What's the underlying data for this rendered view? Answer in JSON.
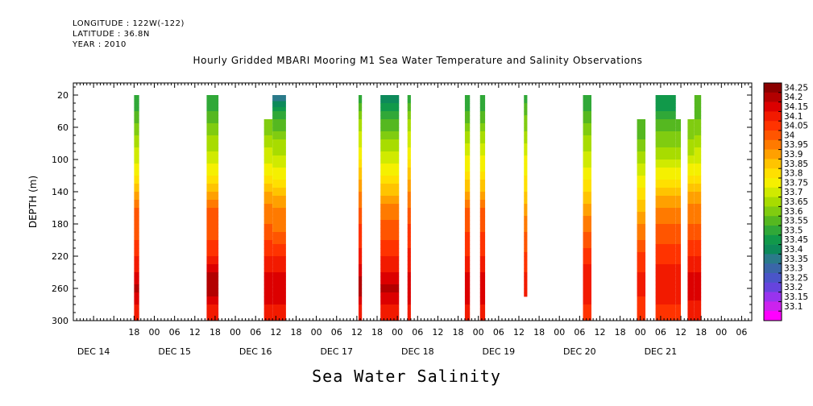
{
  "header": {
    "longitude": "LONGITUDE : 122W(-122)",
    "latitude": "LATITUDE : 36.8N",
    "year": "YEAR : 2010",
    "title": "Hourly Gridded MBARI Mooring M1 Sea Water Temperature and Salinity Observations"
  },
  "chart_data": {
    "type": "heatmap",
    "title": "Hourly Gridded MBARI Mooring M1 Sea Water Temperature and Salinity Observations",
    "xlabel": "Sea Water Salinity",
    "ylabel": "DEPTH (m)",
    "x_unit": "hours since DEC 14 00:00",
    "xlim": [
      -12,
      189
    ],
    "ylim": [
      300,
      5
    ],
    "y_reversed": true,
    "grid": false,
    "y_ticks": [
      20,
      60,
      100,
      140,
      180,
      220,
      260,
      300
    ],
    "x_hour_ticks": [
      {
        "h": 6,
        "label": "18"
      },
      {
        "h": 12,
        "label": "00"
      },
      {
        "h": 18,
        "label": "06"
      },
      {
        "h": 24,
        "label": "12"
      },
      {
        "h": 30,
        "label": "18"
      },
      {
        "h": 36,
        "label": "00"
      },
      {
        "h": 42,
        "label": "06"
      },
      {
        "h": 48,
        "label": "12"
      },
      {
        "h": 54,
        "label": "18"
      },
      {
        "h": 60,
        "label": "00"
      },
      {
        "h": 66,
        "label": "06"
      },
      {
        "h": 72,
        "label": "12"
      },
      {
        "h": 78,
        "label": "18"
      },
      {
        "h": 84,
        "label": "00"
      },
      {
        "h": 90,
        "label": "06"
      },
      {
        "h": 96,
        "label": "12"
      },
      {
        "h": 102,
        "label": "18"
      },
      {
        "h": 108,
        "label": "00"
      },
      {
        "h": 114,
        "label": "06"
      },
      {
        "h": 120,
        "label": "12"
      },
      {
        "h": 126,
        "label": "18"
      },
      {
        "h": 132,
        "label": "00"
      },
      {
        "h": 138,
        "label": "06"
      },
      {
        "h": 144,
        "label": "12"
      },
      {
        "h": 150,
        "label": "18"
      },
      {
        "h": 156,
        "label": "00"
      },
      {
        "h": 162,
        "label": "06"
      },
      {
        "h": 168,
        "label": "12"
      },
      {
        "h": 174,
        "label": "18"
      },
      {
        "h": 180,
        "label": "00"
      },
      {
        "h": 186,
        "label": "06"
      }
    ],
    "x_day_labels": [
      {
        "h": -6,
        "label": "DEC 14"
      },
      {
        "h": 18,
        "label": "DEC 15"
      },
      {
        "h": 42,
        "label": "DEC 16"
      },
      {
        "h": 66,
        "label": "DEC 17"
      },
      {
        "h": 90,
        "label": "DEC 18"
      },
      {
        "h": 114,
        "label": "DEC 19"
      },
      {
        "h": 138,
        "label": "DEC 20"
      },
      {
        "h": 162,
        "label": "DEC 21"
      }
    ],
    "color_levels": [
      "34.25",
      "34.2",
      "34.15",
      "34.1",
      "34.05",
      "34",
      "33.95",
      "33.9",
      "33.85",
      "33.8",
      "33.75",
      "33.7",
      "33.65",
      "33.6",
      "33.55",
      "33.5",
      "33.45",
      "33.4",
      "33.35",
      "33.3",
      "33.25",
      "33.2",
      "33.15",
      "33.1"
    ],
    "color_scale": [
      "#8b0000",
      "#b30000",
      "#dc0000",
      "#f21a00",
      "#ff3300",
      "#ff5500",
      "#ff7a00",
      "#ffa000",
      "#ffc400",
      "#ffe000",
      "#f5f000",
      "#d0ea00",
      "#a8dc00",
      "#80cc10",
      "#55b820",
      "#30a838",
      "#11994a",
      "#0d8a5a",
      "#2a7a8a",
      "#3a66a8",
      "#4a55c8",
      "#6644dd",
      "#9933ee",
      "#cc22ee",
      "#ff00ff"
    ],
    "profile_depths": [
      20,
      40,
      60,
      80,
      100,
      120,
      140,
      160,
      180,
      200,
      220,
      240,
      260,
      280,
      300
    ],
    "series": [
      {
        "start": 6,
        "end": 7.5,
        "values": [
          33.5,
          33.55,
          33.62,
          33.68,
          33.74,
          33.8,
          33.9,
          34.0,
          34.02,
          34.05,
          34.1,
          34.15,
          34.22,
          34.15,
          34.12
        ]
      },
      {
        "start": 27.5,
        "end": 31,
        "values": [
          33.5,
          33.55,
          33.62,
          33.68,
          33.72,
          33.8,
          33.9,
          34.0,
          34.02,
          34.05,
          34.1,
          34.2,
          34.25,
          34.15,
          34.12
        ]
      },
      {
        "start": 44.5,
        "end": 47,
        "values": [
          null,
          null,
          33.62,
          33.68,
          33.74,
          33.8,
          33.9,
          33.98,
          34.0,
          34.05,
          34.1,
          34.15,
          34.2,
          34.15,
          34.12
        ]
      },
      {
        "start": 47,
        "end": 51,
        "values": [
          33.35,
          33.5,
          33.58,
          33.66,
          33.72,
          33.78,
          33.88,
          33.95,
          33.98,
          34.03,
          34.1,
          34.15,
          34.2,
          34.15,
          34.12
        ]
      },
      {
        "start": 72.5,
        "end": 73.5,
        "values": [
          33.5,
          33.6,
          33.68,
          33.74,
          33.8,
          33.88,
          33.95,
          34.0,
          34.05,
          34.08,
          34.12,
          34.18,
          34.25,
          34.15,
          34.12
        ]
      },
      {
        "start": 79,
        "end": 84.5,
        "values": [
          33.4,
          33.5,
          33.58,
          33.66,
          33.74,
          33.8,
          33.88,
          33.96,
          34.02,
          34.05,
          34.1,
          34.15,
          34.22,
          34.15,
          34.12
        ]
      },
      {
        "start": 87,
        "end": 88,
        "values": [
          33.5,
          33.6,
          33.68,
          33.74,
          33.8,
          33.88,
          33.95,
          34.0,
          34.05,
          34.08,
          34.12,
          34.15,
          34.2,
          34.15,
          34.12
        ]
      },
      {
        "start": 104,
        "end": 105.5,
        "values": [
          33.5,
          33.55,
          33.62,
          33.7,
          33.76,
          33.82,
          33.9,
          34.0,
          34.04,
          34.06,
          34.1,
          34.15,
          34.2,
          34.15,
          34.12
        ]
      },
      {
        "start": 108.5,
        "end": 110,
        "values": [
          33.5,
          33.55,
          33.62,
          33.7,
          33.76,
          33.82,
          33.9,
          34.0,
          34.04,
          34.06,
          34.1,
          34.15,
          34.2,
          34.15,
          34.12
        ]
      },
      {
        "start": 121.5,
        "end": 122.5,
        "values": [
          33.5,
          33.58,
          33.64,
          33.7,
          33.76,
          33.8,
          33.85,
          33.92,
          33.98,
          34.02,
          34.06,
          34.1,
          34.12,
          null,
          null
        ]
      },
      {
        "start": 139,
        "end": 141.5,
        "values": [
          33.5,
          33.55,
          33.62,
          33.68,
          33.72,
          33.78,
          33.85,
          33.92,
          33.98,
          34.02,
          34.08,
          34.12,
          34.15,
          34.1,
          34.08
        ]
      },
      {
        "start": 155,
        "end": 157.5,
        "values": [
          null,
          null,
          33.55,
          33.62,
          33.68,
          33.74,
          33.82,
          33.88,
          33.95,
          34.0,
          34.06,
          34.1,
          34.12,
          34.08,
          34.05
        ]
      },
      {
        "start": 160.5,
        "end": 166.5,
        "values": [
          33.48,
          33.5,
          33.58,
          33.64,
          33.7,
          33.78,
          33.88,
          33.95,
          34.0,
          34.04,
          34.08,
          34.12,
          34.15,
          34.1,
          34.08
        ]
      },
      {
        "start": 166.5,
        "end": 168,
        "values": [
          null,
          null,
          33.58,
          33.64,
          33.7,
          33.78,
          33.88,
          33.95,
          34.0,
          34.04,
          34.08,
          34.12,
          34.15,
          34.1,
          34.08
        ]
      },
      {
        "start": 170,
        "end": 172,
        "values": [
          null,
          null,
          33.6,
          33.66,
          33.72,
          33.8,
          33.9,
          33.96,
          34.0,
          34.05,
          34.1,
          34.15,
          34.2,
          34.12,
          34.1
        ]
      },
      {
        "start": 172,
        "end": 174,
        "values": [
          33.55,
          33.58,
          33.62,
          33.68,
          33.74,
          33.8,
          33.9,
          33.96,
          34.0,
          34.05,
          34.1,
          34.15,
          34.2,
          34.12,
          34.1
        ]
      }
    ]
  }
}
